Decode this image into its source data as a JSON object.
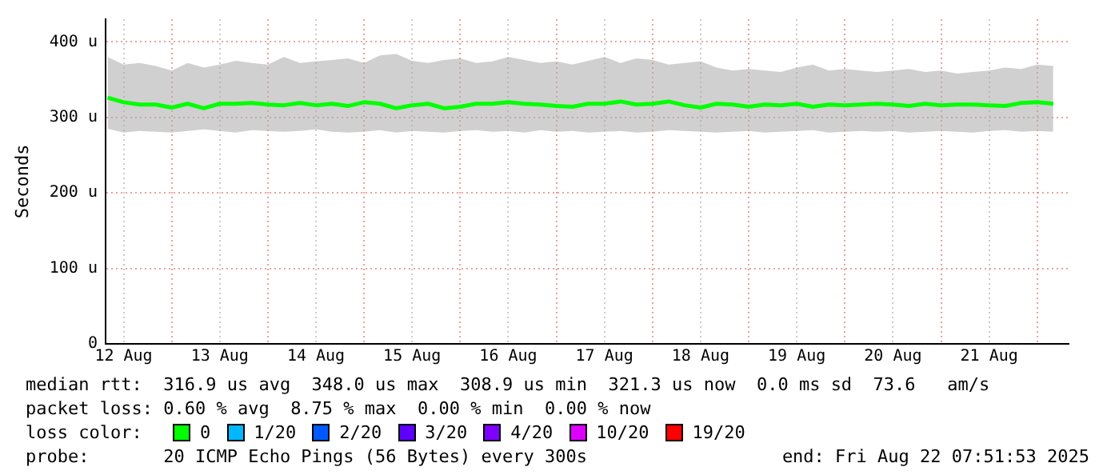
{
  "chart_data": {
    "type": "line",
    "ylabel": "Seconds",
    "x": [
      "2025-08-12T08:00",
      "2025-08-12T12:00",
      "2025-08-12T16:00",
      "2025-08-12T20:00",
      "2025-08-13T00:00",
      "2025-08-13T04:00",
      "2025-08-13T08:00",
      "2025-08-13T12:00",
      "2025-08-13T16:00",
      "2025-08-13T20:00",
      "2025-08-14T00:00",
      "2025-08-14T04:00",
      "2025-08-14T08:00",
      "2025-08-14T12:00",
      "2025-08-14T16:00",
      "2025-08-14T20:00",
      "2025-08-15T00:00",
      "2025-08-15T04:00",
      "2025-08-15T08:00",
      "2025-08-15T12:00",
      "2025-08-15T16:00",
      "2025-08-15T20:00",
      "2025-08-16T00:00",
      "2025-08-16T04:00",
      "2025-08-16T08:00",
      "2025-08-16T12:00",
      "2025-08-16T16:00",
      "2025-08-16T20:00",
      "2025-08-17T00:00",
      "2025-08-17T04:00",
      "2025-08-17T08:00",
      "2025-08-17T12:00",
      "2025-08-17T16:00",
      "2025-08-17T20:00",
      "2025-08-18T00:00",
      "2025-08-18T04:00",
      "2025-08-18T08:00",
      "2025-08-18T12:00",
      "2025-08-18T16:00",
      "2025-08-18T20:00",
      "2025-08-19T00:00",
      "2025-08-19T04:00",
      "2025-08-19T08:00",
      "2025-08-19T12:00",
      "2025-08-19T16:00",
      "2025-08-19T20:00",
      "2025-08-20T00:00",
      "2025-08-20T04:00",
      "2025-08-20T08:00",
      "2025-08-20T12:00",
      "2025-08-20T16:00",
      "2025-08-20T20:00",
      "2025-08-21T00:00",
      "2025-08-21T04:00",
      "2025-08-21T08:00",
      "2025-08-21T12:00",
      "2025-08-21T16:00",
      "2025-08-21T20:00",
      "2025-08-22T00:00",
      "2025-08-22T04:00"
    ],
    "series": [
      {
        "color": "#00ff00",
        "values": [
          326,
          320,
          317,
          317,
          313,
          318,
          312,
          318,
          318,
          319,
          317,
          316,
          319,
          316,
          318,
          315,
          320,
          318,
          312,
          316,
          318,
          312,
          314,
          318,
          318,
          320,
          318,
          317,
          315,
          314,
          318,
          318,
          321,
          317,
          318,
          321,
          316,
          313,
          318,
          317,
          314,
          317,
          316,
          318,
          314,
          317,
          316,
          317,
          318,
          317,
          315,
          318,
          316,
          317,
          317,
          316,
          315,
          319,
          320,
          318
        ],
        "lower": [
          285,
          280,
          282,
          281,
          280,
          282,
          284,
          282,
          280,
          283,
          282,
          281,
          282,
          284,
          281,
          280,
          281,
          283,
          280,
          282,
          281,
          280,
          282,
          283,
          281,
          282,
          280,
          283,
          281,
          282,
          280,
          281,
          282,
          280,
          281,
          283,
          282,
          281,
          280,
          281,
          282,
          280,
          281,
          282,
          283,
          280,
          281,
          282,
          281,
          282,
          280,
          281,
          282,
          281,
          280,
          282,
          283,
          281,
          282,
          281
        ],
        "upper": [
          380,
          370,
          372,
          368,
          362,
          372,
          366,
          370,
          375,
          372,
          370,
          380,
          372,
          374,
          376,
          378,
          372,
          382,
          384,
          375,
          372,
          376,
          378,
          372,
          374,
          380,
          376,
          372,
          374,
          370,
          375,
          380,
          372,
          378,
          376,
          370,
          372,
          374,
          366,
          362,
          364,
          362,
          360,
          366,
          370,
          362,
          364,
          362,
          360,
          362,
          364,
          360,
          362,
          358,
          360,
          362,
          366,
          364,
          370,
          368
        ]
      }
    ],
    "xlim": [
      "2025-08-12T07:30",
      "2025-08-22T07:50"
    ],
    "xticks": [
      {
        "value": "2025-08-12T12:00",
        "label": "12 Aug"
      },
      {
        "value": "2025-08-13T00:00",
        "label": null
      },
      {
        "value": "2025-08-13T12:00",
        "label": "13 Aug"
      },
      {
        "value": "2025-08-14T00:00",
        "label": null
      },
      {
        "value": "2025-08-14T12:00",
        "label": "14 Aug"
      },
      {
        "value": "2025-08-15T00:00",
        "label": null
      },
      {
        "value": "2025-08-15T12:00",
        "label": "15 Aug"
      },
      {
        "value": "2025-08-16T00:00",
        "label": null
      },
      {
        "value": "2025-08-16T12:00",
        "label": "16 Aug"
      },
      {
        "value": "2025-08-17T00:00",
        "label": null
      },
      {
        "value": "2025-08-17T12:00",
        "label": "17 Aug"
      },
      {
        "value": "2025-08-18T00:00",
        "label": null
      },
      {
        "value": "2025-08-18T12:00",
        "label": "18 Aug"
      },
      {
        "value": "2025-08-19T00:00",
        "label": null
      },
      {
        "value": "2025-08-19T12:00",
        "label": "19 Aug"
      },
      {
        "value": "2025-08-20T00:00",
        "label": null
      },
      {
        "value": "2025-08-20T12:00",
        "label": "20 Aug"
      },
      {
        "value": "2025-08-21T00:00",
        "label": null
      },
      {
        "value": "2025-08-21T12:00",
        "label": "21 Aug"
      },
      {
        "value": "2025-08-22T00:00",
        "label": null
      }
    ],
    "ylim": [
      0,
      430
    ],
    "yticks": [
      0,
      {
        "value": 100,
        "label": "100 u"
      },
      {
        "value": 200,
        "label": "200 u"
      },
      {
        "value": 300,
        "label": "300 u"
      },
      {
        "value": 400,
        "label": "400 u"
      }
    ],
    "grid": true,
    "marker": "none",
    "line_style": "solid",
    "legend": false,
    "annotations": [
      "median rtt:  316.9 us avg  348.0 us max  308.9 us min  321.3 us now  0.0 ms sd  73.6   am/s",
      "packet loss: 0.60 % avg  8.75 % max  0.00 % min  0.00 % now",
      "loss color:",
      "0",
      "1/20",
      "2/20",
      "3/20",
      "4/20",
      "10/20",
      "19/20",
      "probe:       20 ICMP Echo Pings (56 Bytes) every 300s",
      "end: Fri Aug 22 07:51:53 2025"
    ]
  }
}
